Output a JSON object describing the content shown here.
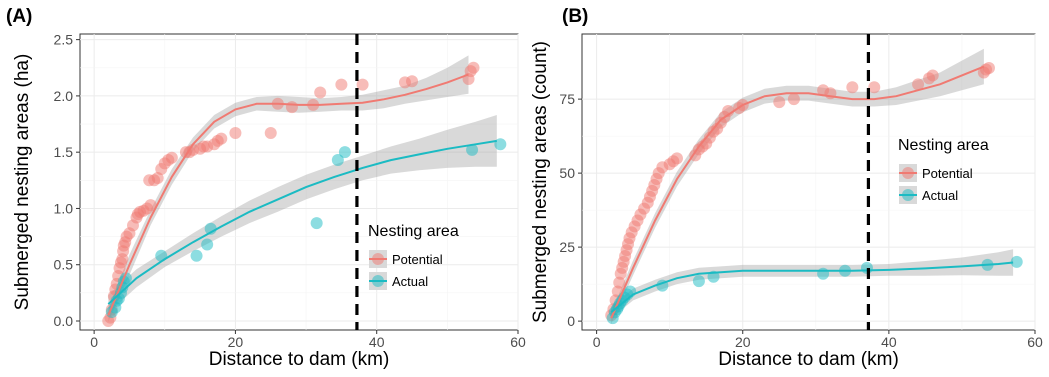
{
  "chart_data": [
    {
      "type": "scatter",
      "panel_label": "(A)",
      "xlabel": "Distance to dam (km)",
      "ylabel": "Submerged nesting areas (ha)",
      "xlim": [
        -2,
        60
      ],
      "ylim": [
        -0.08,
        2.55
      ],
      "x_ticks": [
        0,
        20,
        40,
        60
      ],
      "y_ticks": [
        0.0,
        0.5,
        1.0,
        1.5,
        2.0,
        2.5
      ],
      "y_tick_labels": [
        "0.0",
        "0.5",
        "1.0",
        "1.5",
        "2.0",
        "2.5"
      ],
      "grid": true,
      "dam_distance": 37.2,
      "legend": {
        "title": "Nesting area",
        "position": "lower-right"
      },
      "series": [
        {
          "name": "Potential",
          "color": "#F07A72",
          "points": [
            [
              2,
              0.0
            ],
            [
              2.3,
              0.03
            ],
            [
              2.5,
              0.1
            ],
            [
              2.8,
              0.22
            ],
            [
              3,
              0.28
            ],
            [
              3.2,
              0.33
            ],
            [
              3.4,
              0.4
            ],
            [
              3.6,
              0.47
            ],
            [
              3.8,
              0.52
            ],
            [
              4,
              0.55
            ],
            [
              4.1,
              0.62
            ],
            [
              4.2,
              0.67
            ],
            [
              4.4,
              0.7
            ],
            [
              4.6,
              0.75
            ],
            [
              5,
              0.78
            ],
            [
              5.5,
              0.85
            ],
            [
              6,
              0.92
            ],
            [
              6.2,
              0.95
            ],
            [
              6.5,
              0.97
            ],
            [
              7,
              0.98
            ],
            [
              7.5,
              1.0
            ],
            [
              8,
              1.03
            ],
            [
              7.8,
              1.25
            ],
            [
              8.5,
              1.25
            ],
            [
              9,
              1.27
            ],
            [
              9.5,
              1.35
            ],
            [
              10,
              1.4
            ],
            [
              10.5,
              1.43
            ],
            [
              11,
              1.45
            ],
            [
              13,
              1.5
            ],
            [
              13.5,
              1.5
            ],
            [
              14,
              1.52
            ],
            [
              15,
              1.53
            ],
            [
              15.5,
              1.55
            ],
            [
              16,
              1.55
            ],
            [
              17,
              1.57
            ],
            [
              17.5,
              1.6
            ],
            [
              18,
              1.62
            ],
            [
              20,
              1.67
            ],
            [
              25,
              1.67
            ],
            [
              26,
              1.93
            ],
            [
              28,
              1.9
            ],
            [
              31,
              1.92
            ],
            [
              32,
              2.03
            ],
            [
              35,
              2.1
            ],
            [
              38,
              2.1
            ],
            [
              44,
              2.12
            ],
            [
              45,
              2.13
            ],
            [
              53,
              2.15
            ],
            [
              53.3,
              2.22
            ],
            [
              53.7,
              2.25
            ]
          ],
          "fit_x": [
            2,
            5,
            8,
            11,
            14,
            17,
            20,
            23,
            26,
            29,
            32,
            35,
            38,
            41,
            44,
            47,
            50,
            53
          ],
          "fit_y": [
            0.05,
            0.5,
            0.92,
            1.28,
            1.57,
            1.77,
            1.88,
            1.93,
            1.93,
            1.92,
            1.92,
            1.93,
            1.94,
            1.97,
            2.01,
            2.06,
            2.12,
            2.19
          ],
          "band": [
            0.06,
            0.09,
            0.07,
            0.07,
            0.06,
            0.06,
            0.06,
            0.06,
            0.07,
            0.07,
            0.06,
            0.06,
            0.07,
            0.08,
            0.08,
            0.1,
            0.13,
            0.17
          ]
        },
        {
          "name": "Actual",
          "color": "#1BBBC3",
          "points": [
            [
              2.5,
              0.08
            ],
            [
              3,
              0.12
            ],
            [
              3.2,
              0.18
            ],
            [
              3.5,
              0.2
            ],
            [
              3.8,
              0.25
            ],
            [
              4,
              0.3
            ],
            [
              4.2,
              0.35
            ],
            [
              4.5,
              0.38
            ],
            [
              9.5,
              0.58
            ],
            [
              14.5,
              0.58
            ],
            [
              16,
              0.68
            ],
            [
              16.5,
              0.82
            ],
            [
              31.5,
              0.87
            ],
            [
              34.5,
              1.43
            ],
            [
              35.5,
              1.5
            ],
            [
              53.5,
              1.52
            ],
            [
              57.5,
              1.57
            ]
          ],
          "fit_x": [
            2,
            6,
            10,
            14,
            18,
            22,
            26,
            30,
            34,
            38,
            42,
            46,
            50,
            54,
            57
          ],
          "fit_y": [
            0.15,
            0.38,
            0.55,
            0.7,
            0.84,
            0.97,
            1.08,
            1.19,
            1.28,
            1.36,
            1.43,
            1.48,
            1.53,
            1.57,
            1.6
          ],
          "band": [
            0.08,
            0.08,
            0.07,
            0.08,
            0.09,
            0.1,
            0.11,
            0.11,
            0.11,
            0.11,
            0.12,
            0.14,
            0.17,
            0.2,
            0.23
          ]
        }
      ]
    },
    {
      "type": "scatter",
      "panel_label": "(B)",
      "xlabel": "Distance to dam (km)",
      "ylabel": "Submerged nesting areas (count)",
      "xlim": [
        -2,
        60
      ],
      "ylim": [
        -3,
        97
      ],
      "x_ticks": [
        0,
        20,
        40,
        60
      ],
      "y_ticks": [
        0,
        25,
        50,
        75
      ],
      "y_tick_labels": [
        "0",
        "25",
        "50",
        "75"
      ],
      "grid": true,
      "dam_distance": 37.2,
      "legend": {
        "title": "Nesting area",
        "position": "right"
      },
      "series": [
        {
          "name": "Potential",
          "color": "#F07A72",
          "points": [
            [
              2,
              2
            ],
            [
              2.3,
              4
            ],
            [
              2.6,
              7
            ],
            [
              2.9,
              10
            ],
            [
              3.1,
              13
            ],
            [
              3.3,
              16
            ],
            [
              3.5,
              18
            ],
            [
              3.7,
              20
            ],
            [
              3.9,
              22
            ],
            [
              4.1,
              24
            ],
            [
              4.3,
              26
            ],
            [
              4.5,
              28
            ],
            [
              4.8,
              30
            ],
            [
              5.2,
              32
            ],
            [
              5.6,
              34
            ],
            [
              6,
              36
            ],
            [
              6.5,
              38
            ],
            [
              7,
              40
            ],
            [
              7.3,
              42
            ],
            [
              7.6,
              44
            ],
            [
              7.9,
              46
            ],
            [
              8.2,
              48
            ],
            [
              8.5,
              50
            ],
            [
              9,
              52
            ],
            [
              10,
              53
            ],
            [
              10.5,
              54
            ],
            [
              11,
              55
            ],
            [
              13.5,
              56
            ],
            [
              14,
              58
            ],
            [
              14.5,
              59
            ],
            [
              15,
              60
            ],
            [
              15.5,
              62
            ],
            [
              16,
              64
            ],
            [
              16.5,
              65
            ],
            [
              17,
              67
            ],
            [
              17.5,
              69
            ],
            [
              18,
              71
            ],
            [
              19.5,
              72
            ],
            [
              20,
              73
            ],
            [
              25,
              74
            ],
            [
              27,
              75
            ],
            [
              31,
              78
            ],
            [
              32,
              77
            ],
            [
              35,
              79
            ],
            [
              38,
              79
            ],
            [
              44,
              80
            ],
            [
              45.5,
              82
            ],
            [
              46,
              83
            ],
            [
              53,
              84
            ],
            [
              53.3,
              85
            ],
            [
              53.7,
              85.5
            ]
          ],
          "fit_x": [
            2,
            5,
            8,
            11,
            14,
            17,
            20,
            23,
            26,
            29,
            32,
            35,
            38,
            41,
            44,
            47,
            50,
            53
          ],
          "fit_y": [
            1,
            18,
            34,
            48,
            59,
            68,
            73,
            76,
            77,
            77,
            76,
            75,
            75,
            76,
            78,
            80,
            83,
            86
          ],
          "band": [
            2,
            2.5,
            2.5,
            2.5,
            2.5,
            2.5,
            2.5,
            2.5,
            2.5,
            2.5,
            2.5,
            2.5,
            2.5,
            3,
            3.5,
            4,
            5,
            6
          ]
        },
        {
          "name": "Actual",
          "color": "#1BBBC3",
          "points": [
            [
              2.2,
              1
            ],
            [
              2.5,
              3
            ],
            [
              2.8,
              4
            ],
            [
              3,
              5
            ],
            [
              3.2,
              6
            ],
            [
              3.5,
              7
            ],
            [
              3.8,
              8
            ],
            [
              4.2,
              9
            ],
            [
              4.6,
              10
            ],
            [
              9,
              12
            ],
            [
              14,
              13.5
            ],
            [
              16,
              15
            ],
            [
              31,
              16
            ],
            [
              34,
              17
            ],
            [
              37,
              18
            ],
            [
              53.5,
              19
            ],
            [
              57.5,
              20
            ]
          ],
          "fit_x": [
            2,
            5,
            8,
            11,
            14,
            17,
            20,
            25,
            30,
            35,
            40,
            45,
            50,
            55,
            57
          ],
          "fit_y": [
            3,
            9,
            12,
            14.5,
            16,
            16.5,
            17,
            17,
            17,
            17,
            17.3,
            17.8,
            18.5,
            19.3,
            19.8
          ],
          "band": [
            2,
            2,
            2,
            2,
            2,
            2,
            2,
            2,
            2,
            2,
            2,
            2.5,
            3,
            4,
            4.5
          ]
        }
      ]
    }
  ]
}
